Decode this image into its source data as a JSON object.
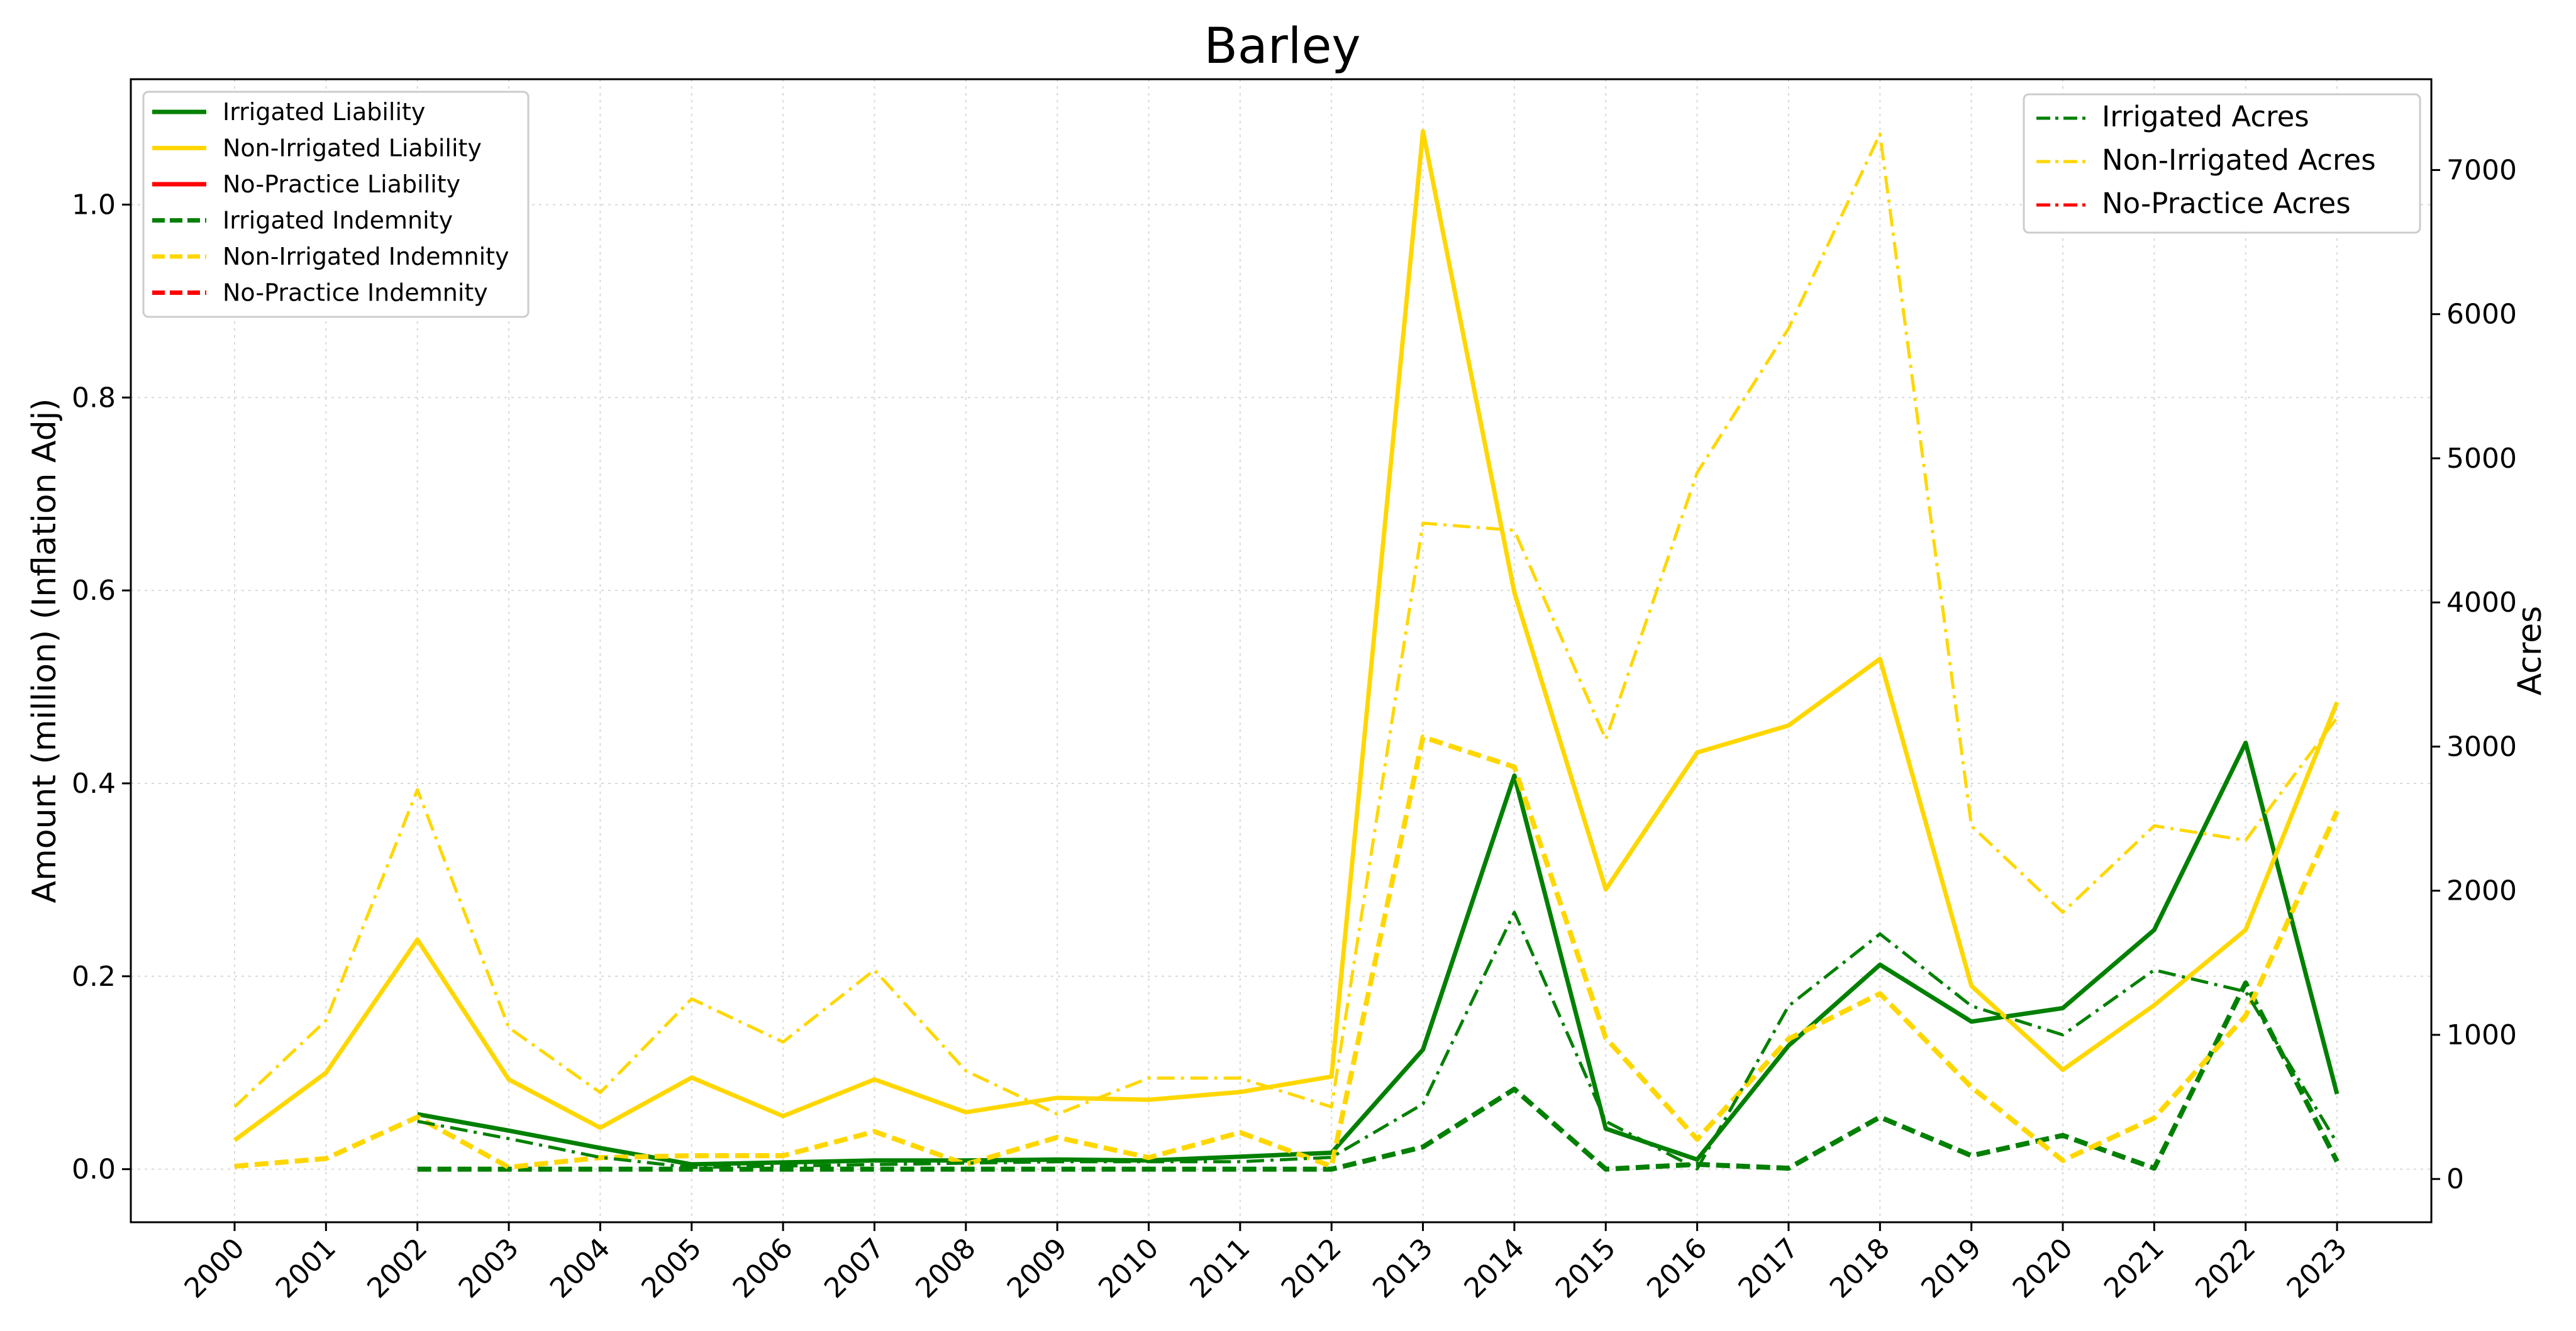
{
  "chart_data": {
    "type": "line",
    "title": "Barley",
    "ylabel_left": "Amount (million) (Inflation Adj)",
    "ylabel_right": "Acres",
    "xlabel": "",
    "x": [
      "2000",
      "2001",
      "2002",
      "2003",
      "2004",
      "2005",
      "2006",
      "2007",
      "2008",
      "2009",
      "2010",
      "2011",
      "2012",
      "2013",
      "2014",
      "2015",
      "2016",
      "2017",
      "2018",
      "2019",
      "2020",
      "2021",
      "2022",
      "2023"
    ],
    "ylim_left": [
      -0.055,
      1.13
    ],
    "ylim_right": [
      -300,
      7630
    ],
    "yticks_left": [
      "0.0",
      "0.2",
      "0.4",
      "0.6",
      "0.8",
      "1.0"
    ],
    "yticks_right": [
      "0",
      "1000",
      "2000",
      "3000",
      "4000",
      "5000",
      "6000",
      "7000"
    ],
    "grid": true,
    "legend_left": {
      "placement": "upper-left",
      "entries": [
        {
          "name": "Irrigated Liability",
          "color": "#008000",
          "style": "solid"
        },
        {
          "name": "Non-Irrigated Liability",
          "color": "#FFD700",
          "style": "solid"
        },
        {
          "name": "No-Practice Liability",
          "color": "#FF0000",
          "style": "solid"
        },
        {
          "name": "Irrigated Indemnity",
          "color": "#008000",
          "style": "dashed"
        },
        {
          "name": "Non-Irrigated Indemnity",
          "color": "#FFD700",
          "style": "dashed"
        },
        {
          "name": "No-Practice Indemnity",
          "color": "#FF0000",
          "style": "dashed"
        }
      ]
    },
    "legend_right": {
      "placement": "upper-right",
      "entries": [
        {
          "name": "Irrigated Acres",
          "color": "#008000",
          "style": "dashdot"
        },
        {
          "name": "Non-Irrigated Acres",
          "color": "#FFD700",
          "style": "dashdot"
        },
        {
          "name": "No-Practice Acres",
          "color": "#FF0000",
          "style": "dashdot"
        }
      ]
    },
    "series": [
      {
        "name": "Irrigated Liability",
        "axis": "left",
        "color": "#008000",
        "style": "solid",
        "values": [
          null,
          null,
          0.057,
          0.04,
          0.022,
          0.005,
          0.007,
          0.009,
          0.009,
          0.01,
          0.009,
          0.013,
          0.017,
          0.124,
          0.408,
          0.042,
          0.01,
          0.128,
          0.212,
          0.153,
          0.167,
          0.248,
          0.442,
          0.078
        ]
      },
      {
        "name": "Non-Irrigated Liability",
        "axis": "left",
        "color": "#FFD700",
        "style": "solid",
        "values": [
          0.03,
          0.1,
          0.238,
          0.093,
          0.043,
          0.095,
          0.055,
          0.093,
          0.059,
          0.074,
          0.072,
          0.08,
          0.096,
          1.076,
          0.598,
          0.29,
          0.432,
          0.46,
          0.529,
          0.19,
          0.103,
          0.17,
          0.248,
          0.484
        ]
      },
      {
        "name": "Irrigated Indemnity",
        "axis": "left",
        "color": "#008000",
        "style": "dashed",
        "values": [
          null,
          null,
          0.0,
          0.0,
          0.0,
          0.0,
          0.0,
          0.0,
          0.0,
          0.0,
          0.0,
          0.0,
          0.0,
          0.023,
          0.083,
          0.0,
          0.005,
          0.001,
          0.054,
          0.014,
          0.035,
          0.001,
          0.193,
          0.008
        ]
      },
      {
        "name": "Non-Irrigated Indemnity",
        "axis": "left",
        "color": "#FFD700",
        "style": "dashed",
        "values": [
          0.003,
          0.011,
          0.054,
          0.002,
          0.012,
          0.014,
          0.014,
          0.039,
          0.005,
          0.033,
          0.012,
          0.038,
          0.003,
          0.448,
          0.417,
          0.136,
          0.031,
          0.135,
          0.182,
          0.085,
          0.009,
          0.053,
          0.159,
          0.371
        ]
      },
      {
        "name": "Irrigated Acres",
        "axis": "right",
        "color": "#008000",
        "style": "dashdot",
        "values": [
          null,
          null,
          400,
          280,
          150,
          80,
          90,
          100,
          110,
          120,
          120,
          120,
          150,
          520,
          1850,
          400,
          70,
          1200,
          1700,
          1200,
          1000,
          1450,
          1300,
          250
        ]
      },
      {
        "name": "Non-Irrigated Acres",
        "axis": "right",
        "color": "#FFD700",
        "style": "dashdot",
        "values": [
          500,
          1100,
          2700,
          1050,
          600,
          1250,
          950,
          1450,
          750,
          450,
          700,
          700,
          500,
          4550,
          4500,
          3050,
          4900,
          5900,
          7250,
          2450,
          1850,
          2450,
          2350,
          3200
        ]
      }
    ]
  }
}
